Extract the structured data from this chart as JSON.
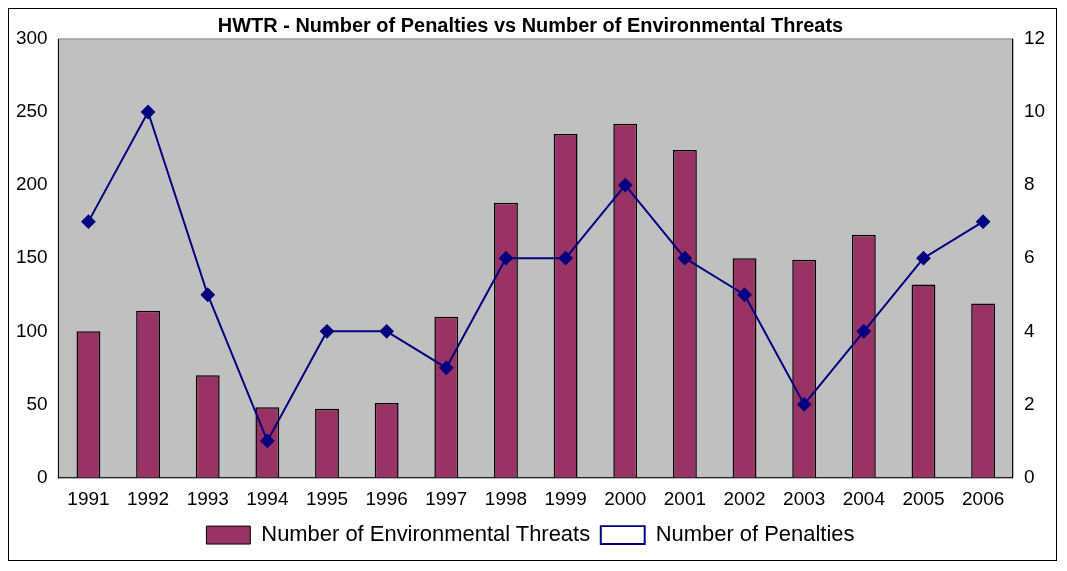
{
  "chart_data": {
    "type": "bar",
    "title": "HWTR - Number of Penalties vs Number of Environmental Threats",
    "categories": [
      "1991",
      "1992",
      "1993",
      "1994",
      "1995",
      "1996",
      "1997",
      "1998",
      "1999",
      "2000",
      "2001",
      "2002",
      "2003",
      "2004",
      "2005",
      "2006"
    ],
    "series": [
      {
        "name": "Number of Environmental Threats",
        "color": "#993366",
        "values": [
          100,
          114,
          70,
          48,
          47,
          51,
          110,
          188,
          235,
          242,
          224,
          150,
          149,
          166,
          132,
          119
        ]
      },
      {
        "name": "Number of Penalties",
        "type": "line",
        "axis": "y2",
        "color": "#000080",
        "marker": "diamond",
        "values": [
          7,
          10,
          5,
          1,
          4,
          4,
          3,
          6,
          6,
          8,
          6,
          5,
          2,
          4,
          6,
          7
        ]
      }
    ],
    "ylim": [
      0,
      300
    ],
    "yticks": [
      0,
      50,
      100,
      150,
      200,
      250,
      300
    ],
    "y2lim": [
      0,
      12
    ],
    "y2ticks": [
      0,
      2,
      4,
      6,
      8,
      10,
      12
    ],
    "grid": false,
    "legend": "bottom"
  }
}
